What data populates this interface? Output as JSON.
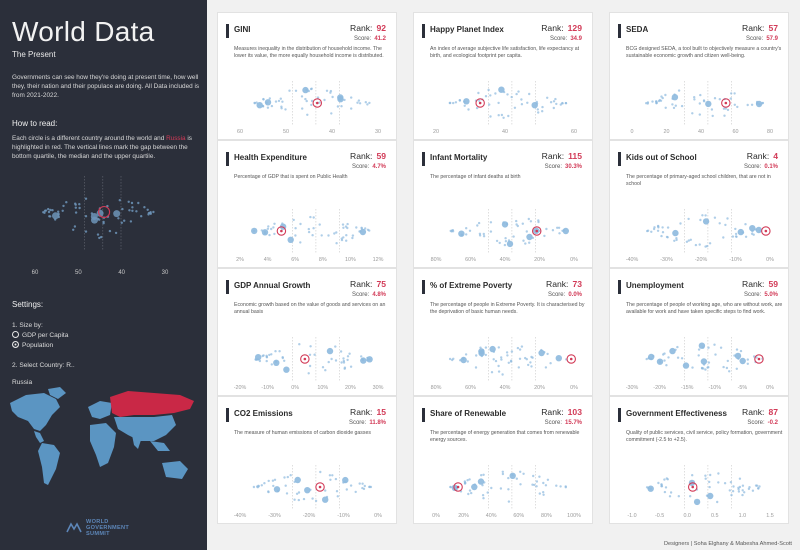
{
  "sidebar": {
    "title": "World Data",
    "subtitle": "The Present",
    "intro": "Governments can see how they're doing at present time, how well they, their nation and their populace are doing. All Data included is from 2021-2022.",
    "how_to_read_heading": "How to read:",
    "how_to_read_pre": "Each circle is a different country around the world and ",
    "how_to_read_highlight": "Russia",
    "how_to_read_post": " is highlighted in red. The vertical lines mark the gap between the bottom quartile, the median and the upper quartile.",
    "legend_ticks": [
      "60",
      "50",
      "40",
      "30"
    ],
    "settings_heading": "Settings:",
    "size_by_label": "1. Size by:",
    "size_options": [
      {
        "label": "GDP per Capita",
        "selected": false
      },
      {
        "label": "Population",
        "selected": true
      }
    ],
    "select_country_label": "2. Select Country:",
    "select_country_value": "R..",
    "selected_country": "Russia",
    "logo_text": [
      "WORLD",
      "GOVERNMENT",
      "SUMMIT"
    ]
  },
  "colors": {
    "sidebar_bg": "#2b2f3a",
    "dot": "#8db9de",
    "highlight": "#d23a57",
    "map_blue": "#5b95c2"
  },
  "cards": [
    {
      "title": "GINI",
      "rank_label": "Rank:",
      "rank": "92",
      "score_label": "Score:",
      "score": "41.2",
      "desc": "Measures inequality in the distribution of household income. The lower its value, the more equally household income is distributed.",
      "ticks": [
        "60",
        "50",
        "40",
        "30"
      ],
      "highlight_pos": 0.56
    },
    {
      "title": "Happy Planet Index",
      "rank_label": "Rank:",
      "rank": "129",
      "score_label": "Score:",
      "score": "34.9",
      "desc": "An index of average subjective life satisfaction, life expectancy at birth, and ecological footprint per capita.",
      "ticks": [
        "20",
        "40",
        "60"
      ],
      "highlight_pos": 0.32
    },
    {
      "title": "SEDA",
      "rank_label": "Rank:",
      "rank": "57",
      "score_label": "Score:",
      "score": "57.9",
      "desc": "BCG designed SEDA, a tool built to objectively measure a country's sustainable economic growth and citizen well-being.",
      "ticks": [
        "0",
        "20",
        "40",
        "60",
        "80"
      ],
      "highlight_pos": 0.68
    },
    {
      "title": "Health Expenditure",
      "rank_label": "Rank:",
      "rank": "59",
      "score_label": "Score:",
      "score": "4.7%",
      "desc": "Percentage of GDP that is spent on Public Health",
      "ticks": [
        "2%",
        "4%",
        "6%",
        "8%",
        "10%",
        "12%"
      ],
      "highlight_pos": 0.3
    },
    {
      "title": "Infant Mortality",
      "rank_label": "Rank:",
      "rank": "115",
      "score_label": "Score:",
      "score": "30.3%",
      "desc": "The percentage of infant deaths at birth",
      "ticks": [
        "80%",
        "60%",
        "40%",
        "20%",
        "0%"
      ],
      "highlight_pos": 0.73
    },
    {
      "title": "Kids out of School",
      "rank_label": "Rank:",
      "rank": "4",
      "score_label": "Score:",
      "score": "0.1%",
      "desc": "The percentage of primary-aged school children, that are not in school",
      "ticks": [
        "-40%",
        "-30%",
        "-20%",
        "-10%",
        "0%"
      ],
      "highlight_pos": 0.97
    },
    {
      "title": "GDP Annual Growth",
      "rank_label": "Rank:",
      "rank": "75",
      "score_label": "Score:",
      "score": "4.8%",
      "desc": "Economic growth based on the value of goods and services on an annual basis",
      "ticks": [
        "-20%",
        "-10%",
        "0%",
        "10%",
        "20%",
        "30%"
      ],
      "highlight_pos": 0.47
    },
    {
      "title": "% of Extreme Poverty",
      "rank_label": "Rank:",
      "rank": "73",
      "score_label": "Score:",
      "score": "0.0%",
      "desc": "The percentage of people in Extreme Poverty. It is characterised by the deprivation of basic human needs.",
      "ticks": [
        "80%",
        "60%",
        "40%",
        "20%",
        "0%"
      ],
      "highlight_pos": 0.98
    },
    {
      "title": "Unemployment",
      "rank_label": "Rank:",
      "rank": "59",
      "score_label": "Score:",
      "score": "5.0%",
      "desc": "The percentage of people of working age, who are without work, are available for work and have taken specific steps to find work.",
      "ticks": [
        "-30%",
        "-20%",
        "-15%",
        "-10%",
        "-5%",
        "0%"
      ],
      "highlight_pos": 0.92
    },
    {
      "title": "CO2 Emissions",
      "rank_label": "Rank:",
      "rank": "15",
      "score_label": "Score:",
      "score": "11.8%",
      "desc": "The measure of human emissions of carbon dioxide gasses",
      "ticks": [
        "-40%",
        "-30%",
        "-20%",
        "-10%",
        "0%"
      ],
      "highlight_pos": 0.58
    },
    {
      "title": "Share of Renewable",
      "rank_label": "Rank:",
      "rank": "103",
      "score_label": "Score:",
      "score": "15.7%",
      "desc": "The percentage of energy generation that comes from renewable energy sources.",
      "ticks": [
        "0%",
        "20%",
        "40%",
        "60%",
        "80%",
        "100%"
      ],
      "highlight_pos": 0.16
    },
    {
      "title": "Government Effectiveness",
      "rank_label": "Rank:",
      "rank": "87",
      "score_label": "Score:",
      "score": "-0.2",
      "desc": "Quality of public services, civil service, policy formation, government commitment (-2.5 to +2.5).",
      "ticks": [
        "-1.0",
        "-0.5",
        "0.0",
        "0.5",
        "1.0",
        "1.5"
      ],
      "highlight_pos": 0.44
    }
  ],
  "footer": "Designers | Soha Elghany & Mabesha Ahmed-Scott"
}
